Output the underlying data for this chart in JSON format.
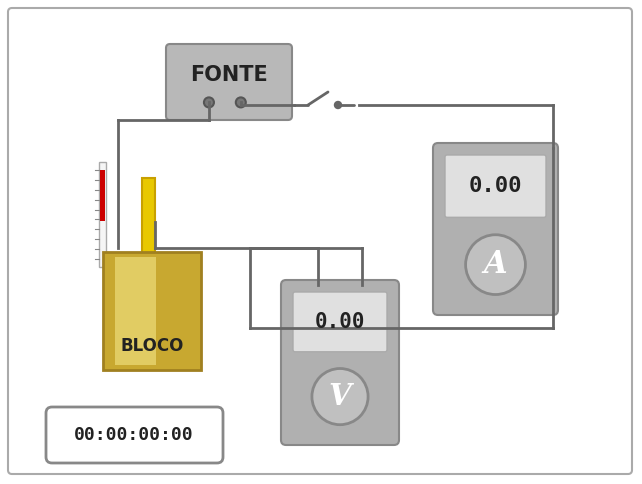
{
  "bg_color": "#ffffff",
  "wire_color": "#666666",
  "fonte_label": "FONTE",
  "bloco_label": "BLOCO",
  "ammeter_label": "A",
  "voltmeter_label": "V",
  "display_value": "0.00",
  "timer_label": "00:00:00:00",
  "bloco_gold1": "#c8a830",
  "bloco_gold2": "#f0e080",
  "bloco_outline": "#a08020",
  "device_bg": "#b0b0b0",
  "fonte_bg": "#b8b8b8"
}
